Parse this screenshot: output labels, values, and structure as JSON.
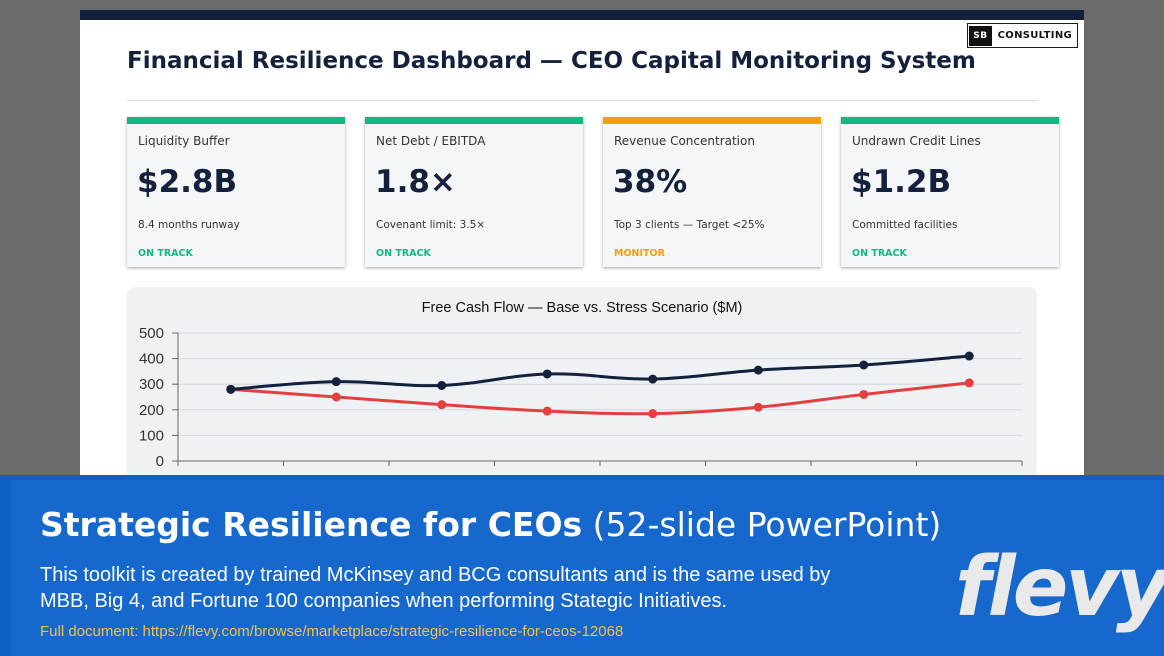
{
  "slide": {
    "title": "Financial Resilience Dashboard — CEO Capital Monitoring System",
    "brand": {
      "box": "SB",
      "text": "CONSULTING"
    }
  },
  "kpis": [
    {
      "label": "Liquidity Buffer",
      "value": "$2.8B",
      "sub": "8.4 months runway",
      "status": "ON TRACK",
      "accent": "#10b981",
      "status_color": "#10b981"
    },
    {
      "label": "Net Debt / EBITDA",
      "value": "1.8×",
      "sub": "Covenant limit: 3.5×",
      "status": "ON TRACK",
      "accent": "#10b981",
      "status_color": "#10b981"
    },
    {
      "label": "Revenue Concentration",
      "value": "38%",
      "sub": "Top 3 clients — Target <25%",
      "status": "MONITOR",
      "accent": "#f59e0b",
      "status_color": "#f59e0b"
    },
    {
      "label": "Undrawn Credit Lines",
      "value": "$1.2B",
      "sub": "Committed facilities",
      "status": "ON TRACK",
      "accent": "#10b981",
      "status_color": "#10b981"
    }
  ],
  "chart_data": {
    "type": "line",
    "title": "Free Cash Flow — Base vs. Stress Scenario ($M)",
    "ylim": [
      0,
      500
    ],
    "yticks": [
      "0",
      "100",
      "200",
      "300",
      "400",
      "500"
    ],
    "grid": true,
    "series": [
      {
        "values": [
          280,
          310,
          295,
          340,
          320,
          355,
          375,
          410
        ],
        "color": "#14213d"
      },
      {
        "values": [
          280,
          250,
          220,
          195,
          185,
          210,
          260,
          305
        ],
        "color": "#e53e3e"
      }
    ]
  },
  "banner": {
    "title_bold": "Strategic Resilience for CEOs",
    "title_rest": " (52-slide PowerPoint)",
    "description": "This toolkit is created by trained McKinsey and BCG consultants and is the same used by MBB, Big 4, and Fortune 100 companies when performing Stategic Initiatives.",
    "link": "Full document: https://flevy.com/browse/marketplace/strategic-resilience-for-ceos-12068",
    "logo": "flevy"
  }
}
